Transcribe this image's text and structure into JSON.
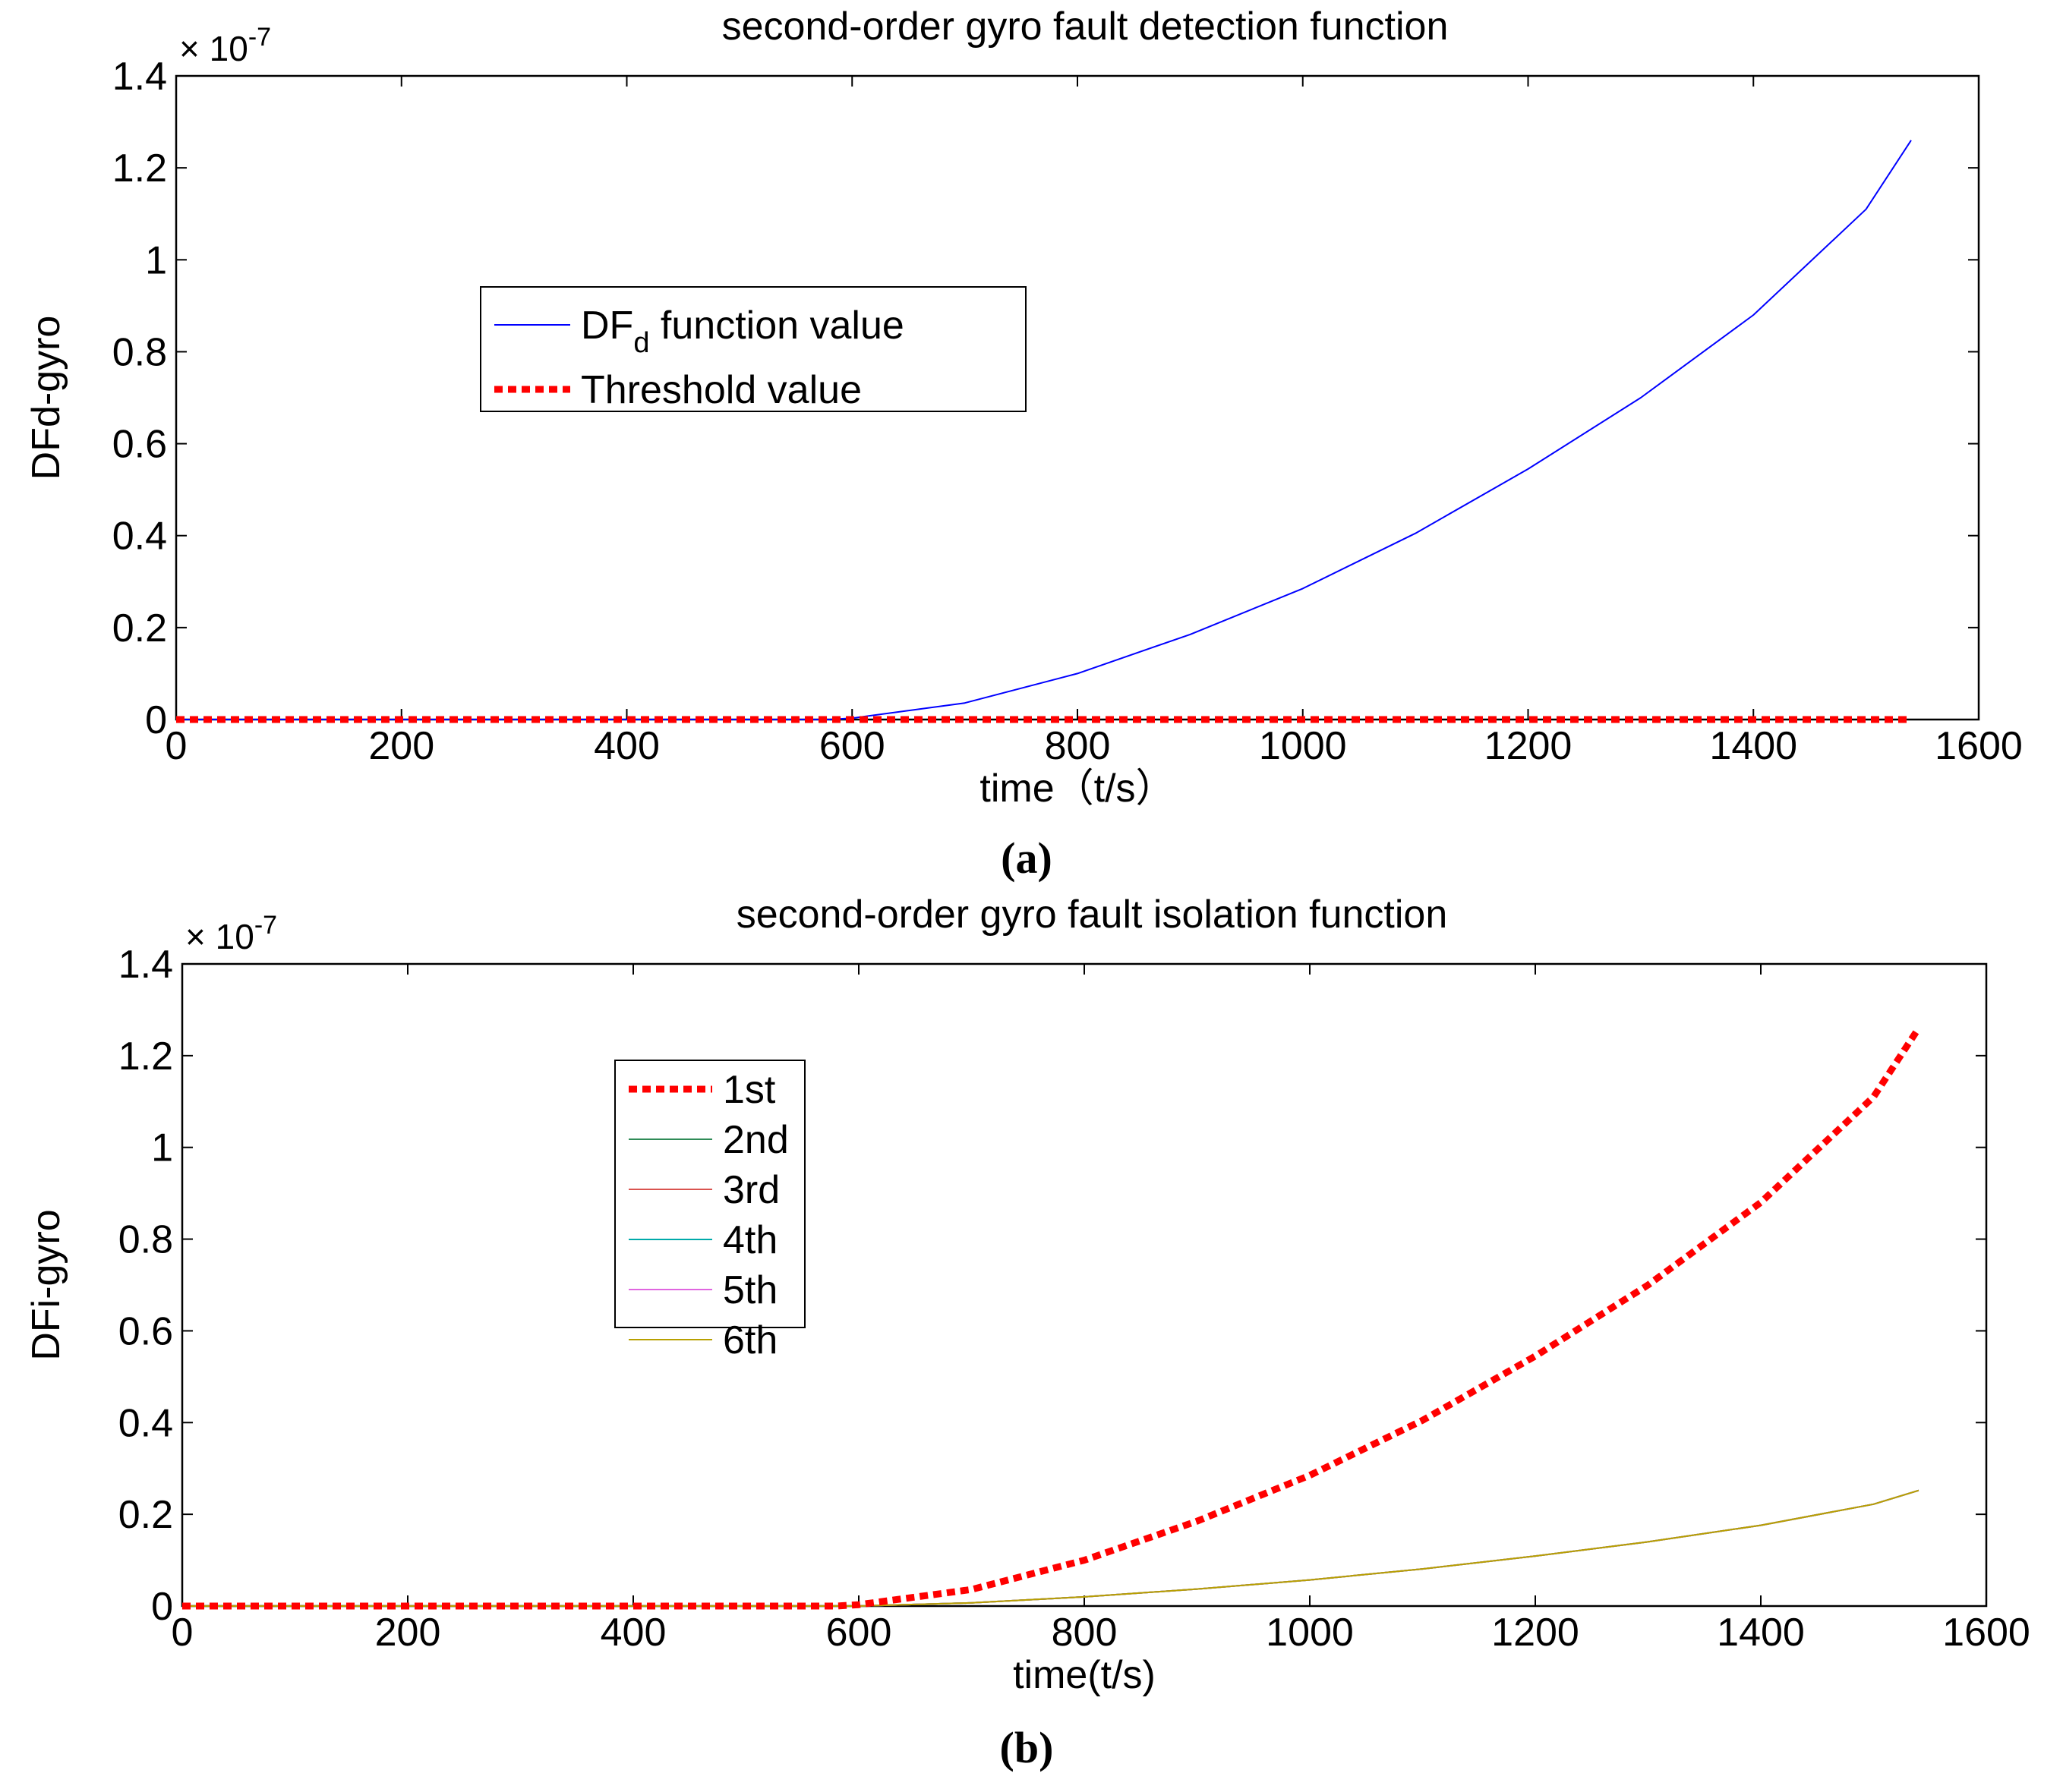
{
  "chart_data": [
    {
      "id": "a",
      "type": "line",
      "title": "second-order gyro fault detection function",
      "xlabel": "time（t/s）",
      "ylabel": "DFd-gyro",
      "exponent_label": "× 10",
      "exponent_power": "-7",
      "caption": "(a)",
      "xlim": [
        0,
        1600
      ],
      "ylim": [
        0,
        1.4
      ],
      "xticks": [
        0,
        200,
        400,
        600,
        800,
        1000,
        1200,
        1400,
        1600
      ],
      "xtick_labels": [
        "0",
        "200",
        "400",
        "600",
        "800",
        "1000",
        "1200",
        "1400",
        "1600"
      ],
      "yticks": [
        0,
        0.2,
        0.4,
        0.6,
        0.8,
        1.0,
        1.2,
        1.4
      ],
      "ytick_labels": [
        "0",
        "0.2",
        "0.4",
        "0.6",
        "0.8",
        "1",
        "1.2",
        "1.4"
      ],
      "grid": false,
      "legend_position": "upper-left",
      "series": [
        {
          "name": "DF",
          "name_subscript": "d",
          "name_suffix": " function value",
          "color": "#0000ff",
          "style": "solid",
          "x": [
            0,
            100,
            200,
            300,
            400,
            500,
            580,
            600,
            700,
            800,
            900,
            1000,
            1100,
            1200,
            1300,
            1400,
            1500,
            1540
          ],
          "y": [
            0,
            0,
            0,
            0,
            0,
            0,
            0,
            0.003,
            0.036,
            0.1,
            0.185,
            0.285,
            0.405,
            0.545,
            0.7,
            0.88,
            1.11,
            1.26
          ]
        },
        {
          "name": "Threshold value",
          "color": "#ff0000",
          "style": "dotted-thick",
          "x": [
            0,
            1540
          ],
          "y": [
            0,
            0
          ]
        }
      ]
    },
    {
      "id": "b",
      "type": "line",
      "title": "second-order gyro fault isolation function",
      "xlabel": "time(t/s)",
      "ylabel": "DFi-gyro",
      "exponent_label": "× 10",
      "exponent_power": "-7",
      "caption": "(b)",
      "xlim": [
        0,
        1600
      ],
      "ylim": [
        0,
        1.4
      ],
      "xticks": [
        0,
        200,
        400,
        600,
        800,
        1000,
        1200,
        1400,
        1600
      ],
      "xtick_labels": [
        "0",
        "200",
        "400",
        "600",
        "800",
        "1000",
        "1200",
        "1400",
        "1600"
      ],
      "yticks": [
        0,
        0.2,
        0.4,
        0.6,
        0.8,
        1.0,
        1.2,
        1.4
      ],
      "ytick_labels": [
        "0",
        "0.2",
        "0.4",
        "0.6",
        "0.8",
        "1",
        "1.2",
        "1.4"
      ],
      "grid": false,
      "legend_position": "upper-left",
      "series": [
        {
          "name": "1st",
          "color": "#ff0000",
          "style": "dotted-thick",
          "x": [
            0,
            100,
            200,
            300,
            400,
            500,
            580,
            600,
            700,
            800,
            900,
            1000,
            1100,
            1200,
            1300,
            1400,
            1500,
            1540
          ],
          "y": [
            0,
            0,
            0,
            0,
            0,
            0,
            0,
            0.003,
            0.036,
            0.1,
            0.185,
            0.285,
            0.405,
            0.545,
            0.7,
            0.88,
            1.11,
            1.26
          ]
        },
        {
          "name": "2nd",
          "color": "#2e8b57",
          "style": "solid",
          "x": [
            0,
            600,
            700,
            800,
            900,
            1000,
            1100,
            1200,
            1300,
            1400,
            1500,
            1540
          ],
          "y": [
            0,
            0,
            0.007,
            0.02,
            0.037,
            0.057,
            0.081,
            0.109,
            0.14,
            0.176,
            0.222,
            0.252
          ]
        },
        {
          "name": "3rd",
          "color": "#d9534f",
          "style": "solid",
          "x": [
            0,
            600,
            700,
            800,
            900,
            1000,
            1100,
            1200,
            1300,
            1400,
            1500,
            1540
          ],
          "y": [
            0,
            0,
            0.007,
            0.02,
            0.037,
            0.057,
            0.081,
            0.109,
            0.14,
            0.176,
            0.222,
            0.252
          ]
        },
        {
          "name": "4th",
          "color": "#00aaaa",
          "style": "solid",
          "x": [
            0,
            600,
            700,
            800,
            900,
            1000,
            1100,
            1200,
            1300,
            1400,
            1500,
            1540
          ],
          "y": [
            0,
            0,
            0.007,
            0.02,
            0.037,
            0.057,
            0.081,
            0.109,
            0.14,
            0.176,
            0.222,
            0.252
          ]
        },
        {
          "name": "5th",
          "color": "#e066e0",
          "style": "solid",
          "x": [
            0,
            600,
            700,
            800,
            900,
            1000,
            1100,
            1200,
            1300,
            1400,
            1500,
            1540
          ],
          "y": [
            0,
            0,
            0.007,
            0.02,
            0.037,
            0.057,
            0.081,
            0.109,
            0.14,
            0.176,
            0.222,
            0.252
          ]
        },
        {
          "name": "6th",
          "color": "#b8a000",
          "style": "solid",
          "x": [
            0,
            600,
            700,
            800,
            900,
            1000,
            1100,
            1200,
            1300,
            1400,
            1500,
            1540
          ],
          "y": [
            0,
            0,
            0.007,
            0.02,
            0.037,
            0.057,
            0.081,
            0.109,
            0.14,
            0.176,
            0.222,
            0.252
          ]
        }
      ]
    }
  ]
}
